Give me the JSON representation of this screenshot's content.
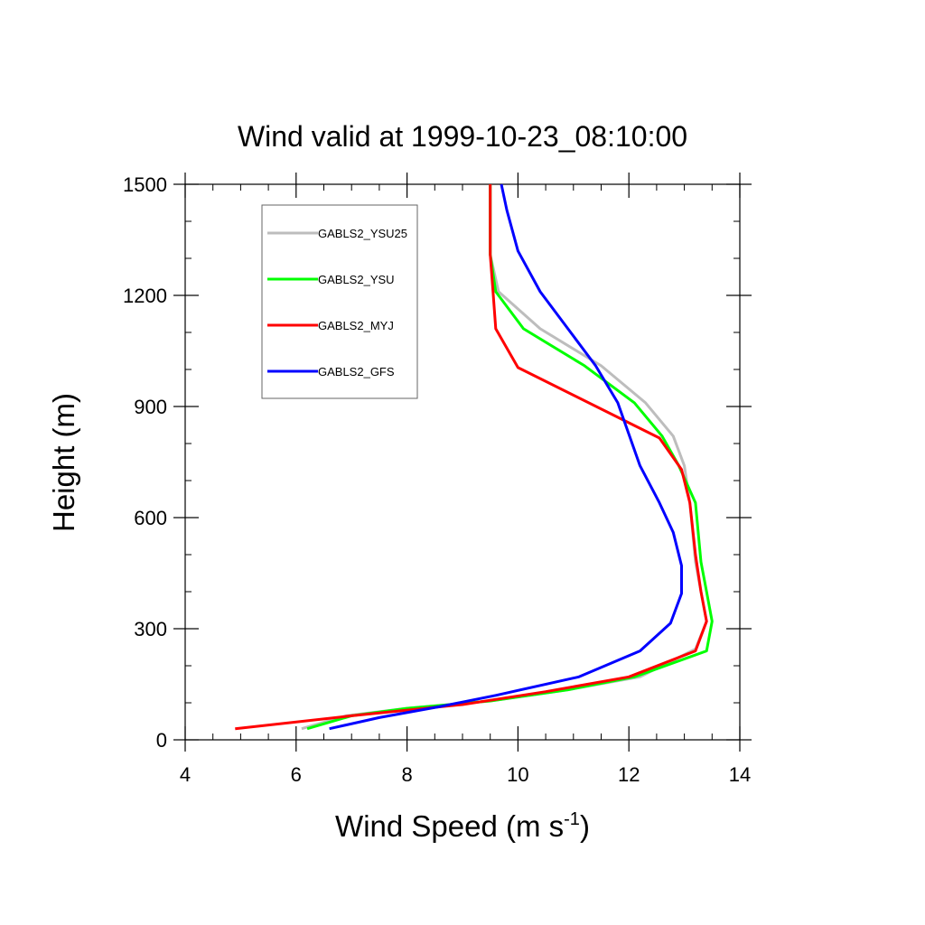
{
  "chart_data": {
    "type": "line",
    "title": "Wind valid at 1999-10-23_08:10:00",
    "xlabel": "Wind Speed (m s",
    "xlabel_sup": "-1",
    "xlabel_end": ")",
    "ylabel": "Height (m)",
    "xlim": [
      4,
      14
    ],
    "ylim": [
      0,
      1500
    ],
    "xticks": [
      "4",
      "6",
      "8",
      "10",
      "12",
      "14"
    ],
    "yticks": [
      "0",
      "300",
      "600",
      "900",
      "1200",
      "1500"
    ],
    "grid": false,
    "legend_position": "top-left",
    "series": [
      {
        "name": "GABLS2_YSU25",
        "color": "#bdbdbd",
        "points": [
          [
            6.1,
            30
          ],
          [
            6.9,
            65
          ],
          [
            8.0,
            85
          ],
          [
            9.5,
            105
          ],
          [
            10.9,
            135
          ],
          [
            12.2,
            170
          ],
          [
            13.2,
            245
          ],
          [
            13.4,
            320
          ],
          [
            13.3,
            400
          ],
          [
            13.2,
            480
          ],
          [
            13.1,
            640
          ],
          [
            13.0,
            740
          ],
          [
            12.8,
            820
          ],
          [
            12.3,
            910
          ],
          [
            11.5,
            1010
          ],
          [
            10.4,
            1110
          ],
          [
            9.65,
            1210
          ],
          [
            9.5,
            1310
          ],
          [
            9.5,
            1410
          ],
          [
            9.5,
            1500
          ]
        ]
      },
      {
        "name": "GABLS2_YSU",
        "color": "#00ff00",
        "points": [
          [
            6.2,
            30
          ],
          [
            7.0,
            65
          ],
          [
            8.0,
            85
          ],
          [
            9.5,
            105
          ],
          [
            10.9,
            135
          ],
          [
            12.1,
            170
          ],
          [
            13.4,
            240
          ],
          [
            13.5,
            320
          ],
          [
            13.4,
            400
          ],
          [
            13.3,
            480
          ],
          [
            13.2,
            640
          ],
          [
            12.9,
            740
          ],
          [
            12.6,
            820
          ],
          [
            12.1,
            910
          ],
          [
            11.2,
            1010
          ],
          [
            10.1,
            1110
          ],
          [
            9.6,
            1210
          ],
          [
            9.5,
            1310
          ],
          [
            9.5,
            1410
          ],
          [
            9.5,
            1500
          ]
        ]
      },
      {
        "name": "GABLS2_MYJ",
        "color": "#ff0000",
        "points": [
          [
            4.9,
            30
          ],
          [
            7.0,
            65
          ],
          [
            9.0,
            95
          ],
          [
            10.5,
            130
          ],
          [
            12.0,
            170
          ],
          [
            13.2,
            240
          ],
          [
            13.4,
            320
          ],
          [
            13.3,
            400
          ],
          [
            13.2,
            500
          ],
          [
            13.1,
            640
          ],
          [
            12.95,
            730
          ],
          [
            12.55,
            815
          ],
          [
            10.0,
            1005
          ],
          [
            9.6,
            1110
          ],
          [
            9.55,
            1210
          ],
          [
            9.5,
            1310
          ],
          [
            9.5,
            1410
          ],
          [
            9.5,
            1500
          ]
        ]
      },
      {
        "name": "GABLS2_GFS",
        "color": "#0000ff",
        "points": [
          [
            6.6,
            30
          ],
          [
            7.5,
            60
          ],
          [
            8.6,
            90
          ],
          [
            9.6,
            120
          ],
          [
            11.1,
            170
          ],
          [
            12.2,
            240
          ],
          [
            12.75,
            315
          ],
          [
            12.95,
            395
          ],
          [
            12.95,
            470
          ],
          [
            12.8,
            560
          ],
          [
            12.55,
            640
          ],
          [
            12.2,
            740
          ],
          [
            11.8,
            910
          ],
          [
            11.4,
            1010
          ],
          [
            10.9,
            1110
          ],
          [
            10.4,
            1210
          ],
          [
            10.0,
            1320
          ],
          [
            9.8,
            1430
          ],
          [
            9.7,
            1500
          ]
        ]
      }
    ]
  }
}
